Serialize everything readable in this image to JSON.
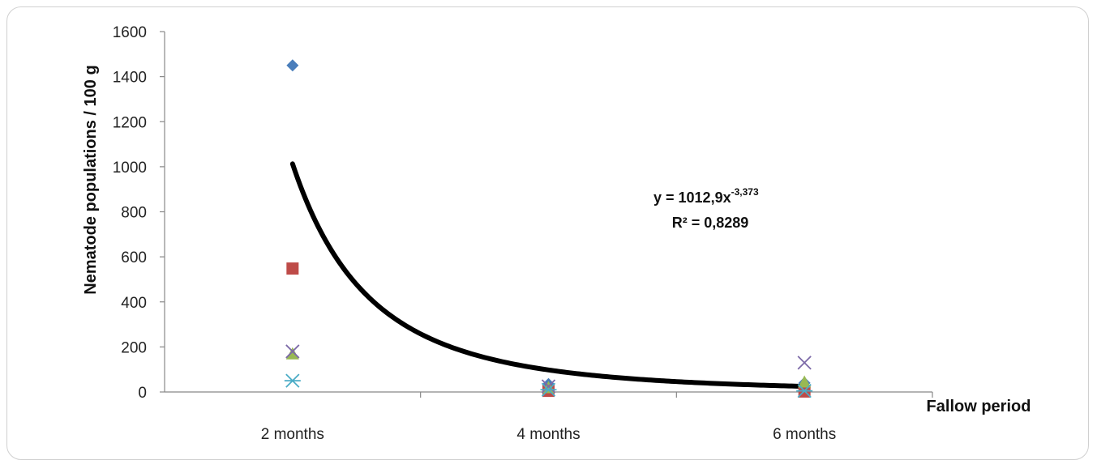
{
  "chart_data": {
    "type": "scatter",
    "title": "",
    "xlabel": "Fallow period",
    "ylabel": "Nematode populations / 100 g",
    "categories": [
      "2 months",
      "4 months",
      "6 months"
    ],
    "y_ticks": [
      "0",
      "200",
      "400",
      "600",
      "800",
      "1000",
      "1200",
      "1400",
      "1600"
    ],
    "ylim": [
      0,
      1600
    ],
    "grid": false,
    "legend": "none",
    "series": [
      {
        "marker": "diamond",
        "color": "#4a7ebb",
        "values": [
          1450,
          35,
          40
        ]
      },
      {
        "marker": "square",
        "color": "#be4b48",
        "values": [
          548,
          5,
          2
        ]
      },
      {
        "marker": "triangle",
        "color": "#98b954",
        "values": [
          170,
          20,
          45
        ]
      },
      {
        "marker": "x",
        "color": "#7d6aa8",
        "values": [
          180,
          25,
          130
        ]
      },
      {
        "marker": "asterisk",
        "color": "#4bacc6",
        "values": [
          50,
          10,
          5
        ]
      }
    ],
    "trendline": {
      "type": "power",
      "coefficient": 1012.9,
      "exponent": -3.373,
      "color": "#000000",
      "equation_label": "y = 1012,9x",
      "equation_exponent": "-3,373",
      "r2_label": "R² = 0,8289"
    }
  }
}
